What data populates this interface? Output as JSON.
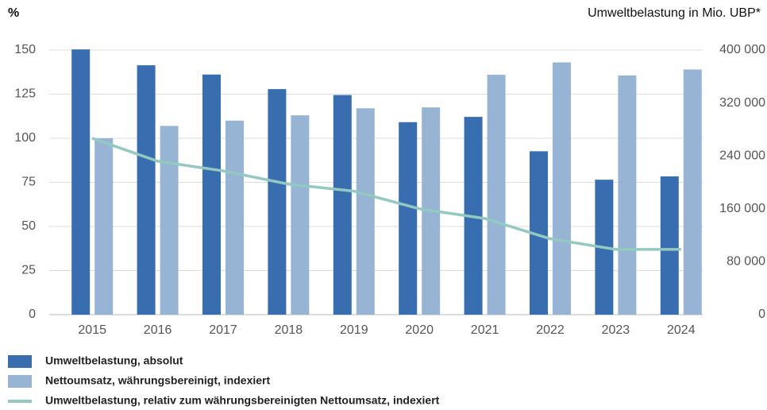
{
  "chart_data": {
    "type": "bar",
    "ylabel": "%",
    "y2label": "Umweltbelastung in Mio. UBP*",
    "categories": [
      "2015",
      "2016",
      "2017",
      "2018",
      "2019",
      "2020",
      "2021",
      "2022",
      "2023",
      "2024"
    ],
    "series": [
      {
        "name": "Umweltbelastung, absolut",
        "color": "#386db0",
        "type": "bar",
        "axis": "y2",
        "values": [
          401000,
          377000,
          363000,
          341000,
          332000,
          291000,
          299000,
          247000,
          204000,
          209000
        ]
      },
      {
        "name": "Nettoumsatz, währungsbereinigt, indexiert",
        "color": "#98b4d4",
        "type": "bar",
        "axis": "y",
        "values": [
          100,
          107,
          110,
          113,
          117,
          117.5,
          136,
          143,
          135.6,
          139
        ]
      },
      {
        "name": "Umweltbelastung, relativ zum währungsbereinigten Nettoumsatz, indexiert",
        "color": "#93c9c0",
        "type": "line",
        "axis": "y",
        "values": [
          100,
          87,
          81.5,
          74,
          70,
          60,
          54.5,
          43,
          37,
          37
        ]
      }
    ],
    "ylim": [
      0,
      150
    ],
    "yticks": [
      0,
      25,
      50,
      75,
      100,
      125,
      150
    ],
    "y2lim": [
      0,
      400000
    ],
    "y2ticks": [
      0,
      {
        "value": 80000,
        "label": "80 000"
      },
      {
        "value": 160000,
        "label": "160 000"
      },
      {
        "value": 240000,
        "label": "240 000"
      },
      {
        "value": 320000,
        "label": "320 000"
      },
      {
        "value": 400000,
        "label": "400 000"
      }
    ],
    "grid": true
  }
}
